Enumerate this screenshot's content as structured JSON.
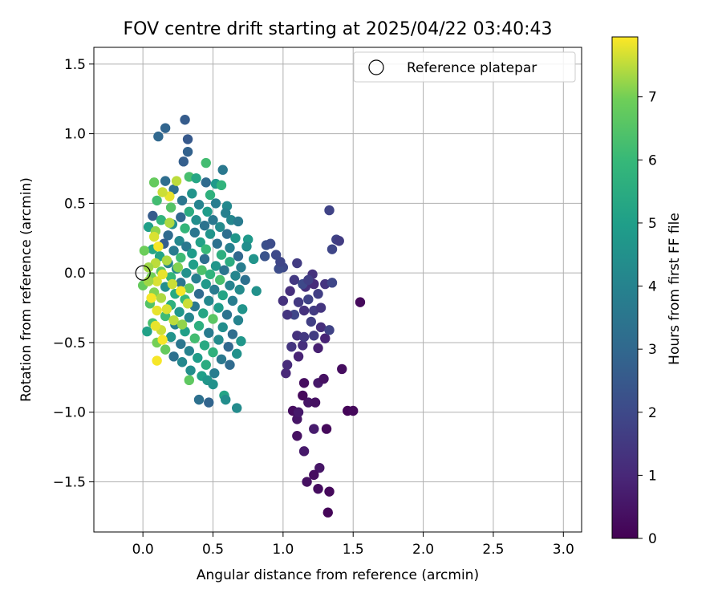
{
  "chart_data": {
    "type": "scatter",
    "title": "FOV centre drift starting at 2025/04/22 03:40:43",
    "xlabel": "Angular distance from reference (arcmin)",
    "ylabel": "Rotation from reference (arcmin)",
    "xlim": [
      -0.35,
      3.13
    ],
    "ylim": [
      -1.86,
      1.62
    ],
    "xticks": [
      0.0,
      0.5,
      1.0,
      1.5,
      2.0,
      2.5,
      3.0
    ],
    "xtick_labels": [
      "0.0",
      "0.5",
      "1.0",
      "1.5",
      "2.0",
      "2.5",
      "3.0"
    ],
    "yticks": [
      1.5,
      1.0,
      0.5,
      0.0,
      -0.5,
      -1.0,
      -1.5
    ],
    "ytick_labels": [
      "1.5",
      "1.0",
      "0.5",
      "0.0",
      "−0.5",
      "−1.0",
      "−1.5"
    ],
    "grid": true,
    "colormap": "viridis",
    "colorbar": {
      "label": "Hours from first FF file",
      "range": [
        0,
        7.95
      ],
      "ticks": [
        0,
        1,
        2,
        3,
        4,
        5,
        6,
        7
      ],
      "tick_labels": [
        "0",
        "1",
        "2",
        "3",
        "4",
        "5",
        "6",
        "7"
      ]
    },
    "legend": {
      "position": "upper right",
      "label": "Reference platepar",
      "marker": "open circle"
    },
    "reference_point": {
      "x": 0.0,
      "y": 0.0
    },
    "series": [
      {
        "note": "points as [angular distance, rotation, hours]",
        "points": [
          [
            1.32,
            -1.72,
            0.1
          ],
          [
            1.33,
            -1.57,
            0.2
          ],
          [
            1.25,
            -1.55,
            0.3
          ],
          [
            1.17,
            -1.5,
            0.4
          ],
          [
            1.26,
            -1.4,
            0.5
          ],
          [
            1.22,
            -1.45,
            0.3
          ],
          [
            1.15,
            -1.28,
            0.6
          ],
          [
            1.1,
            -1.17,
            0.4
          ],
          [
            1.22,
            -1.12,
            0.7
          ],
          [
            1.1,
            -1.05,
            0.5
          ],
          [
            1.31,
            -1.12,
            0.2
          ],
          [
            1.07,
            -0.99,
            0.3
          ],
          [
            1.11,
            -1.0,
            0.6
          ],
          [
            1.18,
            -0.93,
            0.5
          ],
          [
            1.23,
            -0.93,
            0.4
          ],
          [
            1.14,
            -0.88,
            0.2
          ],
          [
            1.46,
            -0.99,
            0.1
          ],
          [
            1.5,
            -0.99,
            0.2
          ],
          [
            1.15,
            -0.79,
            0.3
          ],
          [
            1.25,
            -0.79,
            0.6
          ],
          [
            1.29,
            -0.76,
            0.4
          ],
          [
            1.42,
            -0.69,
            0.3
          ],
          [
            1.55,
            -0.21,
            0.2
          ],
          [
            1.02,
            -0.72,
            1.0
          ],
          [
            1.03,
            -0.66,
            1.1
          ],
          [
            1.11,
            -0.6,
            0.9
          ],
          [
            1.14,
            -0.52,
            1.2
          ],
          [
            1.25,
            -0.54,
            0.8
          ],
          [
            1.3,
            -0.47,
            0.9
          ],
          [
            1.1,
            -0.45,
            1.3
          ],
          [
            1.06,
            -0.53,
            1.4
          ],
          [
            1.15,
            -0.46,
            1.5
          ],
          [
            1.22,
            -0.45,
            1.6
          ],
          [
            1.27,
            -0.39,
            1.2
          ],
          [
            1.33,
            -0.41,
            1.8
          ],
          [
            1.2,
            -0.35,
            1.7
          ],
          [
            1.08,
            -0.3,
            1.9
          ],
          [
            1.15,
            -0.27,
            1.3
          ],
          [
            1.22,
            -0.27,
            1.6
          ],
          [
            1.11,
            -0.21,
            1.5
          ],
          [
            1.18,
            -0.19,
            1.8
          ],
          [
            1.27,
            -0.25,
            1.4
          ],
          [
            1.25,
            -0.15,
            1.7
          ],
          [
            1.16,
            -0.1,
            1.2
          ],
          [
            1.22,
            -0.08,
            1.1
          ],
          [
            1.3,
            -0.08,
            1.4
          ],
          [
            1.35,
            -0.07,
            1.9
          ],
          [
            1.08,
            -0.05,
            1.5
          ],
          [
            1.0,
            -0.2,
            1.3
          ],
          [
            1.1,
            0.07,
            1.6
          ],
          [
            1.05,
            -0.13,
            1.2
          ],
          [
            1.03,
            -0.3,
            1.4
          ],
          [
            1.0,
            0.04,
            2.0
          ],
          [
            0.97,
            0.03,
            2.1
          ],
          [
            0.98,
            0.08,
            1.9
          ],
          [
            0.95,
            0.13,
            2.0
          ],
          [
            0.88,
            0.2,
            2.2
          ],
          [
            0.91,
            0.21,
            2.1
          ],
          [
            0.87,
            0.12,
            2.3
          ],
          [
            1.33,
            0.45,
            1.8
          ],
          [
            1.38,
            0.24,
            1.8
          ],
          [
            1.4,
            0.23,
            1.6
          ],
          [
            1.35,
            0.17,
            1.9
          ],
          [
            1.21,
            -0.01,
            1.3
          ],
          [
            1.14,
            -0.08,
            2.0
          ],
          [
            1.18,
            -0.05,
            1.7
          ],
          [
            0.3,
            1.1,
            2.6
          ],
          [
            0.16,
            1.04,
            2.9
          ],
          [
            0.11,
            0.98,
            3.0
          ],
          [
            0.32,
            0.87,
            2.8
          ],
          [
            0.32,
            0.96,
            2.5
          ],
          [
            0.29,
            0.8,
            2.7
          ],
          [
            0.45,
            0.79,
            6.2
          ],
          [
            0.57,
            0.74,
            3.6
          ],
          [
            0.33,
            0.69,
            6.3
          ],
          [
            0.38,
            0.68,
            5.3
          ],
          [
            0.45,
            0.65,
            3.1
          ],
          [
            0.52,
            0.64,
            4.8
          ],
          [
            0.56,
            0.63,
            5.8
          ],
          [
            0.16,
            0.66,
            3.2
          ],
          [
            0.08,
            0.65,
            6.8
          ],
          [
            0.22,
            0.6,
            3.3
          ],
          [
            0.35,
            0.57,
            4.6
          ],
          [
            0.48,
            0.56,
            5.7
          ],
          [
            0.1,
            0.52,
            6.2
          ],
          [
            0.28,
            0.52,
            3.5
          ],
          [
            0.4,
            0.49,
            4.0
          ],
          [
            0.52,
            0.5,
            3.8
          ],
          [
            0.6,
            0.48,
            4.2
          ],
          [
            0.2,
            0.47,
            6.5
          ],
          [
            0.33,
            0.44,
            5.5
          ],
          [
            0.46,
            0.44,
            4.9
          ],
          [
            0.59,
            0.43,
            3.9
          ],
          [
            0.27,
            0.4,
            3.0
          ],
          [
            0.07,
            0.41,
            2.6
          ],
          [
            0.13,
            0.38,
            5.8
          ],
          [
            0.38,
            0.38,
            4.4
          ],
          [
            0.5,
            0.38,
            3.6
          ],
          [
            0.63,
            0.38,
            4.1
          ],
          [
            0.68,
            0.37,
            3.7
          ],
          [
            0.21,
            0.35,
            4.5
          ],
          [
            0.44,
            0.34,
            3.4
          ],
          [
            0.55,
            0.33,
            4.3
          ],
          [
            0.04,
            0.33,
            5.0
          ],
          [
            0.3,
            0.32,
            5.9
          ],
          [
            0.09,
            0.3,
            7.2
          ],
          [
            0.37,
            0.29,
            3.5
          ],
          [
            0.48,
            0.28,
            4.6
          ],
          [
            0.6,
            0.28,
            3.2
          ],
          [
            0.18,
            0.27,
            3.1
          ],
          [
            0.66,
            0.25,
            4.7
          ],
          [
            0.75,
            0.24,
            4.8
          ],
          [
            0.26,
            0.23,
            4.2
          ],
          [
            0.41,
            0.22,
            5.1
          ],
          [
            0.53,
            0.21,
            3.3
          ],
          [
            0.15,
            0.21,
            2.7
          ],
          [
            0.31,
            0.19,
            3.6
          ],
          [
            0.74,
            0.19,
            4.4
          ],
          [
            0.62,
            0.18,
            3.9
          ],
          [
            0.45,
            0.17,
            6.0
          ],
          [
            0.07,
            0.17,
            5.3
          ],
          [
            0.22,
            0.16,
            3.7
          ],
          [
            0.01,
            0.16,
            6.9
          ],
          [
            0.35,
            0.14,
            4.9
          ],
          [
            0.56,
            0.13,
            5.6
          ],
          [
            0.68,
            0.12,
            3.0
          ],
          [
            0.12,
            0.12,
            5.2
          ],
          [
            0.27,
            0.11,
            6.1
          ],
          [
            0.44,
            0.1,
            3.2
          ],
          [
            0.79,
            0.1,
            4.6
          ],
          [
            0.62,
            0.08,
            5.5
          ],
          [
            0.09,
            0.07,
            7.5
          ],
          [
            0.18,
            0.07,
            4.0
          ],
          [
            0.36,
            0.06,
            5.0
          ],
          [
            0.52,
            0.05,
            4.7
          ],
          [
            0.7,
            0.04,
            3.8
          ],
          [
            0.04,
            0.04,
            7.3
          ],
          [
            0.24,
            0.03,
            4.3
          ],
          [
            0.42,
            0.02,
            6.4
          ],
          [
            0.58,
            0.02,
            3.4
          ],
          [
            0.13,
            0.01,
            6.6
          ],
          [
            0.31,
            0.0,
            4.5
          ],
          [
            0.48,
            -0.01,
            5.8
          ],
          [
            0.66,
            -0.02,
            4.1
          ],
          [
            0.06,
            -0.03,
            7.0
          ],
          [
            0.2,
            -0.03,
            5.9
          ],
          [
            0.38,
            -0.04,
            3.9
          ],
          [
            0.55,
            -0.05,
            6.3
          ],
          [
            0.73,
            -0.05,
            3.3
          ],
          [
            0.1,
            -0.06,
            7.7
          ],
          [
            0.27,
            -0.07,
            3.5
          ],
          [
            0.45,
            -0.08,
            4.8
          ],
          [
            0.62,
            -0.09,
            4.0
          ],
          [
            0.0,
            -0.09,
            6.8
          ],
          [
            0.16,
            -0.1,
            4.4
          ],
          [
            0.33,
            -0.11,
            6.7
          ],
          [
            0.51,
            -0.12,
            3.7
          ],
          [
            0.69,
            -0.12,
            4.3
          ],
          [
            0.81,
            -0.13,
            4.5
          ],
          [
            0.08,
            -0.14,
            7.1
          ],
          [
            0.23,
            -0.15,
            5.4
          ],
          [
            0.4,
            -0.15,
            3.1
          ],
          [
            0.57,
            -0.16,
            5.2
          ],
          [
            0.13,
            -0.18,
            7.4
          ],
          [
            0.3,
            -0.19,
            6.0
          ],
          [
            0.47,
            -0.2,
            4.2
          ],
          [
            0.64,
            -0.2,
            3.8
          ],
          [
            0.05,
            -0.22,
            6.5
          ],
          [
            0.2,
            -0.23,
            5.7
          ],
          [
            0.37,
            -0.24,
            3.6
          ],
          [
            0.54,
            -0.25,
            4.9
          ],
          [
            0.71,
            -0.26,
            4.6
          ],
          [
            0.1,
            -0.27,
            7.8
          ],
          [
            0.26,
            -0.28,
            4.7
          ],
          [
            0.43,
            -0.29,
            5.3
          ],
          [
            0.6,
            -0.3,
            3.4
          ],
          [
            0.16,
            -0.31,
            6.1
          ],
          [
            0.33,
            -0.32,
            4.1
          ],
          [
            0.5,
            -0.33,
            6.6
          ],
          [
            0.68,
            -0.34,
            4.0
          ],
          [
            0.07,
            -0.36,
            6.3
          ],
          [
            0.23,
            -0.37,
            3.9
          ],
          [
            0.4,
            -0.38,
            5.6
          ],
          [
            0.57,
            -0.39,
            4.4
          ],
          [
            0.13,
            -0.41,
            7.6
          ],
          [
            0.3,
            -0.42,
            5.0
          ],
          [
            0.47,
            -0.43,
            3.7
          ],
          [
            0.64,
            -0.44,
            3.2
          ],
          [
            0.2,
            -0.46,
            4.6
          ],
          [
            0.37,
            -0.47,
            6.2
          ],
          [
            0.54,
            -0.48,
            4.3
          ],
          [
            0.7,
            -0.49,
            4.7
          ],
          [
            0.03,
            -0.42,
            5.1
          ],
          [
            0.1,
            -0.5,
            7.0
          ],
          [
            0.27,
            -0.51,
            3.5
          ],
          [
            0.44,
            -0.52,
            5.4
          ],
          [
            0.61,
            -0.53,
            3.0
          ],
          [
            0.16,
            -0.55,
            6.8
          ],
          [
            0.33,
            -0.56,
            4.0
          ],
          [
            0.5,
            -0.57,
            5.7
          ],
          [
            0.67,
            -0.58,
            4.5
          ],
          [
            0.22,
            -0.6,
            3.3
          ],
          [
            0.39,
            -0.61,
            4.9
          ],
          [
            0.56,
            -0.62,
            3.6
          ],
          [
            0.1,
            -0.63,
            7.9
          ],
          [
            0.28,
            -0.64,
            4.2
          ],
          [
            0.45,
            -0.66,
            5.5
          ],
          [
            0.62,
            -0.66,
            3.1
          ],
          [
            0.34,
            -0.7,
            4.4
          ],
          [
            0.51,
            -0.72,
            3.8
          ],
          [
            0.42,
            -0.74,
            5.0
          ],
          [
            0.33,
            -0.77,
            6.7
          ],
          [
            0.46,
            -0.77,
            4.7
          ],
          [
            0.5,
            -0.8,
            4.5
          ],
          [
            0.58,
            -0.88,
            5.2
          ],
          [
            0.59,
            -0.91,
            4.4
          ],
          [
            0.4,
            -0.91,
            3.3
          ],
          [
            0.47,
            -0.93,
            2.9
          ],
          [
            0.67,
            -0.97,
            4.3
          ],
          [
            0.24,
            0.66,
            7.5
          ],
          [
            0.19,
            0.55,
            7.8
          ],
          [
            0.14,
            0.58,
            7.6
          ],
          [
            0.08,
            0.26,
            7.7
          ],
          [
            0.11,
            0.19,
            7.9
          ],
          [
            0.17,
            0.09,
            7.4
          ],
          [
            0.14,
            -0.01,
            7.8
          ],
          [
            0.21,
            -0.08,
            7.6
          ],
          [
            0.06,
            -0.18,
            7.9
          ],
          [
            0.17,
            -0.26,
            7.7
          ],
          [
            0.22,
            -0.34,
            7.5
          ],
          [
            0.09,
            -0.38,
            7.8
          ],
          [
            0.27,
            -0.13,
            7.9
          ],
          [
            0.32,
            -0.22,
            7.6
          ],
          [
            0.04,
            -0.06,
            7.3
          ],
          [
            0.25,
            0.04,
            7.1
          ],
          [
            0.19,
            0.36,
            7.4
          ],
          [
            0.28,
            -0.37,
            7.2
          ],
          [
            0.14,
            -0.48,
            7.9
          ]
        ]
      }
    ]
  }
}
